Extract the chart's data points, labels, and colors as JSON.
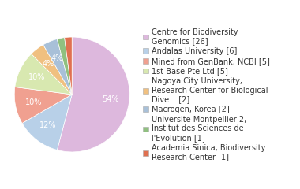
{
  "labels": [
    "Centre for Biodiversity\nGenomics [26]",
    "Andalas University [6]",
    "Mined from GenBank, NCBI [5]",
    "1st Base Pte Ltd [5]",
    "Nagoya City University,\nResearch Center for Biological\nDive... [2]",
    "Macrogen, Korea [2]",
    "Universite Montpellier 2,\nInstitut des Sciences de\nl'Evolution [1]",
    "Academia Sinica, Biodiversity\nResearch Center [1]"
  ],
  "values": [
    26,
    6,
    5,
    5,
    2,
    2,
    1,
    1
  ],
  "colors": [
    "#ddb8dd",
    "#b8d0e8",
    "#f0a090",
    "#d8e8b0",
    "#f0c080",
    "#a8c0d8",
    "#90c080",
    "#e07050"
  ],
  "startangle": 90,
  "background_color": "#ffffff",
  "pct_fontsize": 7,
  "legend_fontsize": 7
}
